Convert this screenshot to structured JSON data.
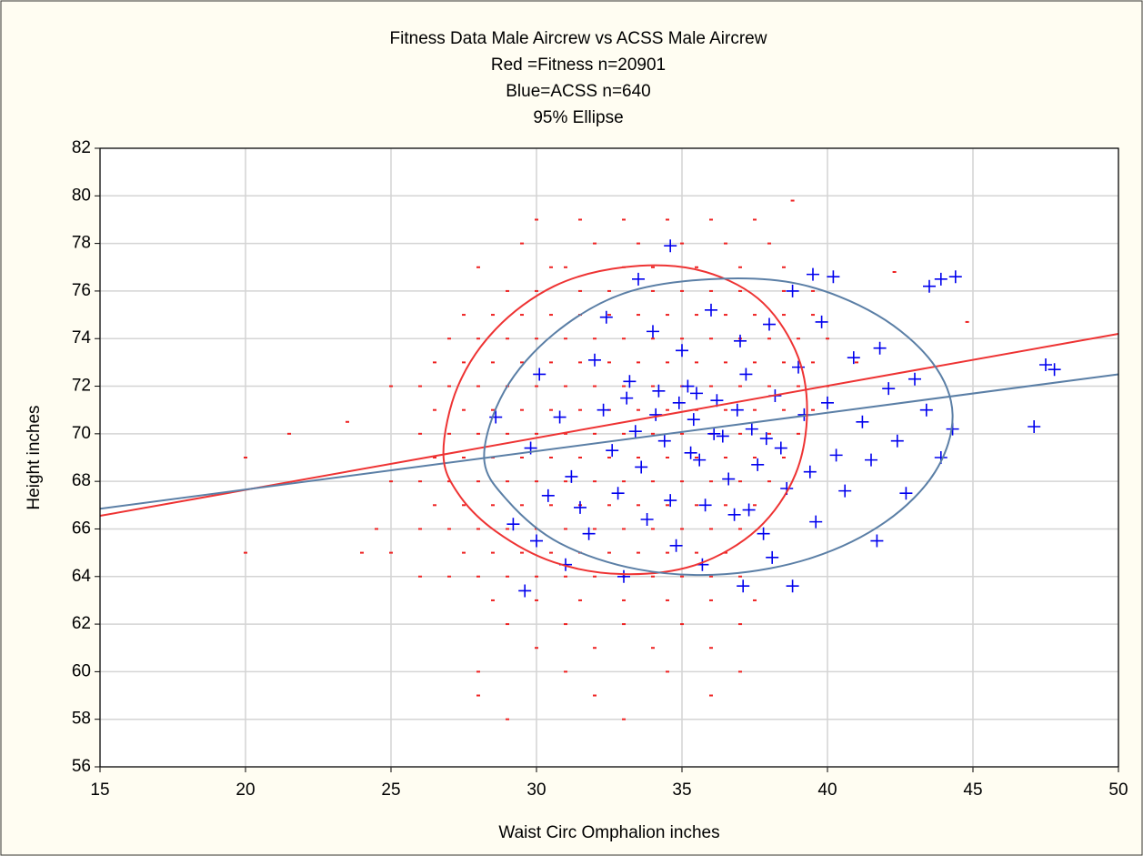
{
  "chart_data": {
    "type": "scatter",
    "title": "Fitness Data Male Aircrew vs ACSS Male Aircrew",
    "subtitle": [
      "Red =Fitness n=20901",
      "Blue=ACSS n=640",
      "95% Ellipse"
    ],
    "x_label": "Waist Circ Omphalion inches",
    "y_label": "Height inches",
    "xlim": [
      15,
      50
    ],
    "ylim": [
      56,
      82
    ],
    "xticks": [
      15,
      20,
      25,
      30,
      35,
      40,
      45,
      50
    ],
    "yticks": [
      56,
      58,
      60,
      62,
      64,
      66,
      68,
      70,
      72,
      74,
      76,
      78,
      80,
      82
    ],
    "grid": true,
    "series": [
      {
        "kind": "points",
        "marker": "dash",
        "color": "#ee2222",
        "x": [
          30,
          31.5,
          33,
          34.5,
          36,
          37.5,
          29.5,
          32,
          33.5,
          35,
          36.5,
          38,
          28,
          30.5,
          31,
          33,
          34,
          35.5,
          37,
          38.5,
          29,
          30,
          31.5,
          32.5,
          34,
          35,
          36,
          37,
          38.5,
          39.5,
          27.5,
          28.5,
          29.5,
          30.5,
          31.5,
          32.5,
          33.5,
          34.5,
          35.5,
          36.5,
          37.5,
          38.5,
          39.5,
          27,
          28,
          29,
          30,
          31,
          32,
          33,
          34,
          35,
          36,
          37,
          38,
          39,
          40,
          26.5,
          27.5,
          28.5,
          29.5,
          30.5,
          31.5,
          32.5,
          33.5,
          34.5,
          35.5,
          36.5,
          37.5,
          38.5,
          39.5,
          41,
          25,
          26,
          27,
          28,
          29,
          30,
          31,
          32,
          33,
          34,
          35,
          36,
          37,
          38,
          39,
          40,
          26.5,
          27.5,
          28.5,
          29.5,
          30.5,
          31.5,
          32.5,
          33.5,
          34.5,
          35.5,
          36.5,
          37.5,
          38.5,
          39.5,
          21.5,
          26,
          27,
          28,
          29,
          30,
          31,
          32,
          33,
          34,
          35,
          36,
          37,
          38,
          39,
          20,
          26.5,
          27.5,
          28.5,
          29.5,
          30.5,
          31.5,
          32.5,
          33.5,
          34.5,
          35.5,
          36.5,
          37.5,
          38.5,
          25,
          26,
          27,
          28,
          29,
          30,
          31,
          32,
          33,
          34,
          35,
          36,
          37,
          38,
          26.5,
          27.5,
          28.5,
          29.5,
          30.5,
          31.5,
          32.5,
          33.5,
          34.5,
          35.5,
          36.5,
          37.5,
          24.5,
          26,
          27,
          28,
          29,
          30,
          31,
          32,
          33,
          34,
          35,
          36,
          37,
          20,
          24,
          25,
          27.5,
          28.5,
          29.5,
          30.5,
          31.5,
          32.5,
          33.5,
          34.5,
          35.5,
          36.5,
          26,
          27,
          28,
          29,
          30,
          31,
          32,
          33,
          34,
          35,
          36,
          37,
          28.5,
          30,
          31.5,
          33,
          34.5,
          36,
          37.5,
          29,
          31,
          33,
          35,
          37,
          30,
          32,
          34,
          36,
          28,
          31,
          34.5,
          37,
          28,
          32,
          36,
          29,
          33,
          23.5,
          44.8,
          42.3,
          38.8
        ],
        "values": [
          79,
          79,
          79,
          79,
          79,
          79,
          78,
          78,
          78,
          78,
          78,
          78,
          77,
          77,
          77,
          77,
          77,
          77,
          77,
          77,
          76,
          76,
          76,
          76,
          76,
          76,
          76,
          76,
          76,
          76,
          75,
          75,
          75,
          75,
          75,
          75,
          75,
          75,
          75,
          75,
          75,
          75,
          75,
          74,
          74,
          74,
          74,
          74,
          74,
          74,
          74,
          74,
          74,
          74,
          74,
          74,
          74,
          73,
          73,
          73,
          73,
          73,
          73,
          73,
          73,
          73,
          73,
          73,
          73,
          73,
          73,
          73,
          72,
          72,
          72,
          72,
          72,
          72,
          72,
          72,
          72,
          72,
          72,
          72,
          72,
          72,
          72,
          72,
          71,
          71,
          71,
          71,
          71,
          71,
          71,
          71,
          71,
          71,
          71,
          71,
          71,
          71,
          70,
          70,
          70,
          70,
          70,
          70,
          70,
          70,
          70,
          70,
          70,
          70,
          70,
          70,
          70,
          69,
          69,
          69,
          69,
          69,
          69,
          69,
          69,
          69,
          69,
          69,
          69,
          69,
          69,
          68,
          68,
          68,
          68,
          68,
          68,
          68,
          68,
          68,
          68,
          68,
          68,
          68,
          68,
          67,
          67,
          67,
          67,
          67,
          67,
          67,
          67,
          67,
          67,
          67,
          67,
          66,
          66,
          66,
          66,
          66,
          66,
          66,
          66,
          66,
          66,
          66,
          66,
          66,
          65,
          65,
          65,
          65,
          65,
          65,
          65,
          65,
          65,
          65,
          65,
          65,
          65,
          64,
          64,
          64,
          64,
          64,
          64,
          64,
          64,
          64,
          64,
          64,
          64,
          63,
          63,
          63,
          63,
          63,
          63,
          63,
          62,
          62,
          62,
          62,
          62,
          61,
          61,
          61,
          61,
          60,
          60,
          60,
          60,
          59,
          59,
          59,
          58,
          58,
          70.5,
          74.7,
          76.8,
          79.8
        ]
      },
      {
        "kind": "points",
        "marker": "cross",
        "color": "#0000ee",
        "x": [
          30.1,
          30.8,
          31.2,
          31.5,
          32.0,
          32.3,
          32.6,
          32.8,
          33.0,
          33.2,
          33.4,
          33.6,
          33.8,
          34.0,
          34.2,
          34.4,
          34.6,
          34.8,
          35.0,
          35.2,
          35.4,
          35.6,
          35.8,
          36.0,
          36.2,
          36.4,
          36.6,
          36.8,
          37.0,
          37.2,
          37.4,
          37.6,
          37.8,
          38.0,
          38.2,
          38.4,
          38.6,
          38.8,
          39.0,
          39.2,
          39.4,
          39.6,
          39.8,
          40.0,
          40.3,
          40.6,
          40.9,
          41.2,
          41.5,
          41.8,
          42.1,
          42.4,
          42.7,
          43.0,
          43.4,
          43.9,
          29.8,
          30.4,
          31.0,
          31.8,
          32.4,
          33.5,
          34.9,
          35.5,
          36.1,
          35.3,
          34.1,
          36.9,
          37.9,
          33.1,
          35.7,
          37.3,
          39.5,
          40.2,
          38.1,
          30.0,
          47.8,
          47.5,
          47.1,
          44.4,
          43.9,
          43.5,
          44.3,
          29.6,
          38.8,
          37.1,
          34.6,
          41.7,
          28.6,
          29.2
        ],
        "values": [
          72.5,
          70.7,
          68.2,
          66.9,
          73.1,
          71.0,
          69.3,
          67.5,
          64.0,
          72.2,
          70.1,
          68.6,
          66.4,
          74.3,
          71.8,
          69.7,
          67.2,
          65.3,
          73.5,
          72.0,
          70.6,
          68.9,
          67.0,
          75.2,
          71.4,
          69.9,
          68.1,
          66.6,
          73.9,
          72.5,
          70.2,
          68.7,
          65.8,
          74.6,
          71.6,
          69.4,
          67.7,
          76.0,
          72.8,
          70.8,
          68.4,
          66.3,
          74.7,
          71.3,
          69.1,
          67.6,
          73.2,
          70.5,
          68.9,
          73.6,
          71.9,
          69.7,
          67.5,
          72.3,
          71.0,
          69.0,
          69.4,
          67.4,
          64.5,
          65.8,
          74.9,
          76.5,
          71.3,
          71.7,
          70.0,
          69.2,
          70.8,
          71.0,
          69.8,
          71.5,
          64.5,
          66.8,
          76.7,
          76.6,
          64.8,
          65.5,
          72.7,
          72.9,
          70.3,
          76.6,
          76.5,
          76.2,
          70.2,
          63.4,
          63.6,
          63.6,
          77.9,
          65.5,
          70.7,
          66.2
        ]
      },
      {
        "kind": "line",
        "color": "#ee3333",
        "x": [
          15,
          50
        ],
        "values": [
          66.55,
          74.2
        ]
      },
      {
        "kind": "line",
        "color": "#5b7fa6",
        "x": [
          15,
          50
        ],
        "values": [
          66.85,
          72.5
        ]
      },
      {
        "kind": "ellipse",
        "color": "#ee3333",
        "x": [
          26.8,
          27.3,
          28.6,
          30.6,
          33.0,
          35.5,
          37.6,
          38.9,
          39.3,
          38.9,
          37.6,
          35.5,
          33.0,
          30.6,
          28.6,
          27.3
        ],
        "values": [
          69.2,
          72.0,
          74.4,
          76.2,
          77.0,
          76.9,
          75.7,
          73.5,
          71.0,
          68.3,
          66.0,
          64.5,
          64.1,
          64.6,
          65.9,
          67.5
        ]
      },
      {
        "kind": "ellipse",
        "color": "#5b7fa6",
        "x": [
          28.2,
          28.9,
          30.6,
          33.0,
          36.0,
          39.0,
          41.7,
          43.6,
          44.3,
          43.7,
          42.0,
          39.5,
          36.5,
          33.5,
          30.8,
          29.0
        ],
        "values": [
          69.0,
          71.8,
          74.2,
          75.9,
          76.5,
          76.3,
          75.0,
          73.0,
          70.8,
          68.4,
          66.3,
          64.8,
          64.1,
          64.3,
          65.4,
          67.2
        ]
      }
    ]
  }
}
